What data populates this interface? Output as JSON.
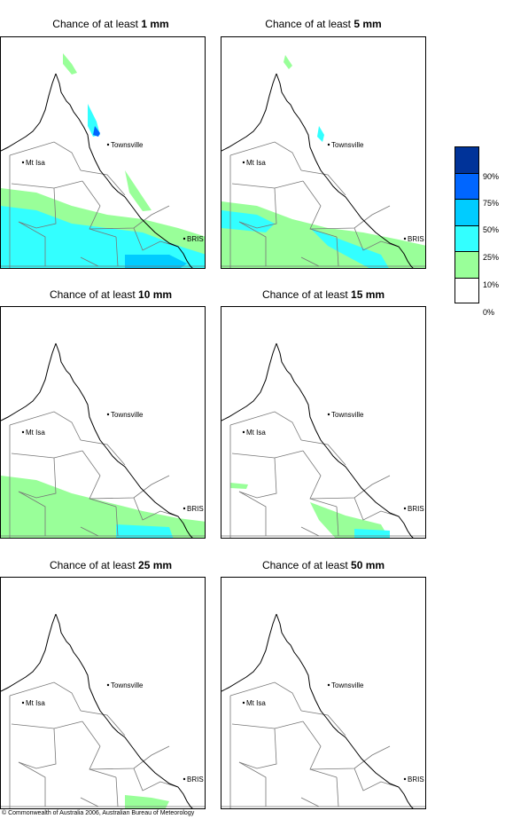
{
  "panels": [
    {
      "prefix": "Chance of at least ",
      "amount": "1 mm"
    },
    {
      "prefix": "Chance of at least ",
      "amount": "5 mm"
    },
    {
      "prefix": "Chance of at least ",
      "amount": "10 mm"
    },
    {
      "prefix": "Chance of at least ",
      "amount": "15 mm"
    },
    {
      "prefix": "Chance of at least ",
      "amount": "25 mm"
    },
    {
      "prefix": "Chance of at least ",
      "amount": "50 mm"
    }
  ],
  "places": {
    "townsville": "Townsville",
    "mt_isa": "Mt Isa",
    "bris": "BRIS"
  },
  "legend": {
    "labels": [
      "90%",
      "75%",
      "50%",
      "25%",
      "10%",
      "0%"
    ],
    "colors": [
      "#003399",
      "#0066ff",
      "#00ccff",
      "#33ffff",
      "#99ff99",
      "#ffffff"
    ]
  },
  "copyright": "© Commonwealth of Australia 2006, Australian Bureau of Meteorology"
}
